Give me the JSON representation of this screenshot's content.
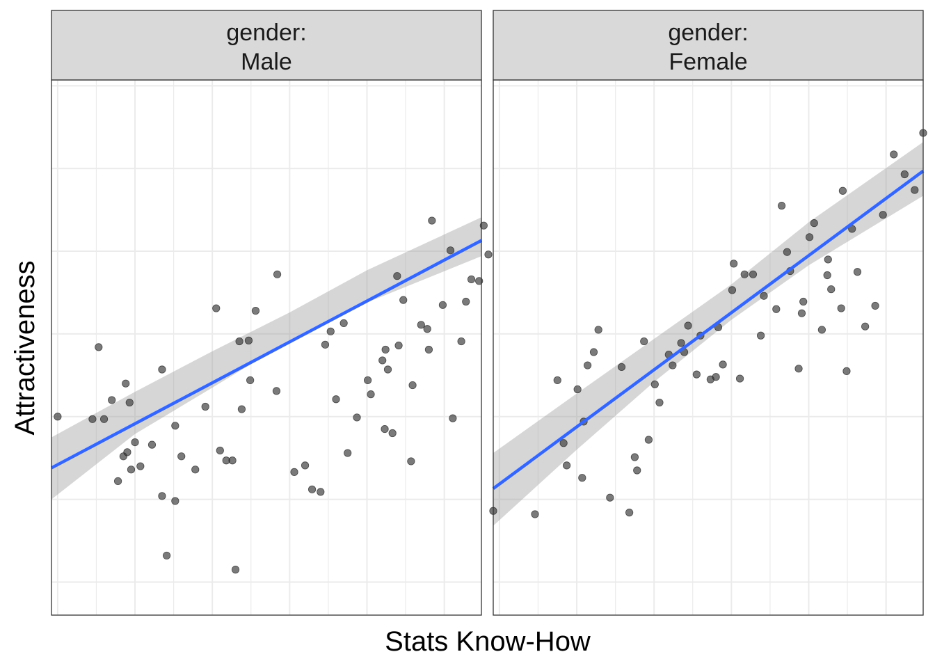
{
  "chart_data": {
    "type": "scatter",
    "xlabel": "Stats Know-How",
    "ylabel": "Attractiveness",
    "x_tick_labels": [],
    "y_tick_labels": [],
    "grid": true,
    "colors": {
      "points": "#333333",
      "fit_line": "#3366ff",
      "confidence_band": "#999999",
      "strip_background": "#d9d9d9",
      "gridlines": "#ebebeb",
      "panel_border": "#333333"
    },
    "facets": [
      {
        "strip_label_line1": "gender:",
        "strip_label_line2": "Male",
        "xlim": [
          -0.08,
          5.48
        ],
        "ylim": [
          -0.4,
          6.07
        ],
        "points": [
          [
            0.0,
            2.0
          ],
          [
            0.45,
            1.97
          ],
          [
            0.6,
            1.97
          ],
          [
            0.88,
            2.4
          ],
          [
            0.53,
            2.84
          ],
          [
            0.7,
            2.2
          ],
          [
            0.78,
            1.22
          ],
          [
            0.85,
            1.52
          ],
          [
            0.9,
            1.57
          ],
          [
            0.93,
            2.17
          ],
          [
            0.95,
            1.36
          ],
          [
            1.0,
            1.69
          ],
          [
            1.07,
            1.4
          ],
          [
            1.22,
            1.66
          ],
          [
            1.35,
            1.04
          ],
          [
            1.35,
            2.57
          ],
          [
            1.41,
            0.32
          ],
          [
            1.52,
            0.98
          ],
          [
            1.52,
            1.89
          ],
          [
            1.6,
            1.52
          ],
          [
            1.78,
            1.36
          ],
          [
            1.91,
            2.12
          ],
          [
            2.05,
            3.31
          ],
          [
            2.1,
            1.59
          ],
          [
            2.18,
            1.47
          ],
          [
            2.26,
            1.47
          ],
          [
            2.3,
            0.15
          ],
          [
            2.35,
            2.91
          ],
          [
            2.38,
            2.09
          ],
          [
            2.47,
            2.92
          ],
          [
            2.49,
            2.44
          ],
          [
            2.56,
            3.28
          ],
          [
            2.83,
            2.31
          ],
          [
            2.84,
            3.72
          ],
          [
            3.06,
            1.33
          ],
          [
            3.2,
            1.41
          ],
          [
            3.29,
            1.12
          ],
          [
            3.4,
            1.09
          ],
          [
            3.46,
            2.87
          ],
          [
            3.53,
            3.03
          ],
          [
            3.6,
            2.21
          ],
          [
            3.7,
            3.13
          ],
          [
            3.75,
            1.56
          ],
          [
            3.87,
            1.99
          ],
          [
            4.01,
            2.44
          ],
          [
            4.05,
            2.27
          ],
          [
            4.2,
            2.68
          ],
          [
            4.24,
            2.81
          ],
          [
            4.23,
            1.85
          ],
          [
            4.27,
            2.57
          ],
          [
            4.33,
            1.8
          ],
          [
            4.39,
            3.7
          ],
          [
            4.41,
            2.86
          ],
          [
            4.47,
            3.41
          ],
          [
            4.57,
            1.46
          ],
          [
            4.59,
            2.38
          ],
          [
            4.7,
            3.11
          ],
          [
            4.78,
            3.06
          ],
          [
            4.8,
            2.81
          ],
          [
            4.84,
            4.37
          ],
          [
            4.98,
            3.35
          ],
          [
            5.08,
            4.01
          ],
          [
            5.11,
            1.98
          ],
          [
            5.22,
            2.91
          ],
          [
            5.28,
            3.39
          ],
          [
            5.35,
            3.66
          ],
          [
            5.45,
            3.64
          ],
          [
            5.51,
            4.31
          ],
          [
            5.57,
            3.96
          ]
        ],
        "fit_line": {
          "x": [
            -0.08,
            5.48
          ],
          "y": [
            1.38,
            4.13
          ]
        },
        "confidence_band": {
          "x": [
            -0.08,
            1.0,
            2.0,
            3.0,
            4.0,
            5.48
          ],
          "lower": [
            1.0,
            1.79,
            2.35,
            2.92,
            3.38,
            3.94
          ],
          "upper": [
            1.75,
            2.3,
            2.79,
            3.26,
            3.77,
            4.41
          ]
        }
      },
      {
        "strip_label_line1": "gender:",
        "strip_label_line2": "Female",
        "xlim": [
          -0.08,
          5.48
        ],
        "ylim": [
          -0.4,
          6.07
        ],
        "points": [
          [
            -0.08,
            0.86
          ],
          [
            0.46,
            0.82
          ],
          [
            0.75,
            2.44
          ],
          [
            0.83,
            1.68
          ],
          [
            0.87,
            1.41
          ],
          [
            1.01,
            2.33
          ],
          [
            1.07,
            1.26
          ],
          [
            1.09,
            1.94
          ],
          [
            1.14,
            2.62
          ],
          [
            1.22,
            2.78
          ],
          [
            1.28,
            3.05
          ],
          [
            1.43,
            1.02
          ],
          [
            1.58,
            2.6
          ],
          [
            1.68,
            0.84
          ],
          [
            1.75,
            1.51
          ],
          [
            1.78,
            1.35
          ],
          [
            1.87,
            2.91
          ],
          [
            1.93,
            1.72
          ],
          [
            2.01,
            2.39
          ],
          [
            2.07,
            2.17
          ],
          [
            2.19,
            2.75
          ],
          [
            2.24,
            2.62
          ],
          [
            2.35,
            2.89
          ],
          [
            2.39,
            2.78
          ],
          [
            2.44,
            3.1
          ],
          [
            2.55,
            2.51
          ],
          [
            2.6,
            2.98
          ],
          [
            2.73,
            2.45
          ],
          [
            2.8,
            2.48
          ],
          [
            2.83,
            3.08
          ],
          [
            2.89,
            2.63
          ],
          [
            3.01,
            3.53
          ],
          [
            3.03,
            3.85
          ],
          [
            3.11,
            2.46
          ],
          [
            3.17,
            3.72
          ],
          [
            3.28,
            3.72
          ],
          [
            3.38,
            2.98
          ],
          [
            3.42,
            3.46
          ],
          [
            3.58,
            3.3
          ],
          [
            3.65,
            4.55
          ],
          [
            3.72,
            3.99
          ],
          [
            3.76,
            3.76
          ],
          [
            3.87,
            2.58
          ],
          [
            3.91,
            3.25
          ],
          [
            3.93,
            3.39
          ],
          [
            4.01,
            4.17
          ],
          [
            4.07,
            4.34
          ],
          [
            4.17,
            3.05
          ],
          [
            4.24,
            3.71
          ],
          [
            4.25,
            3.9
          ],
          [
            4.29,
            3.54
          ],
          [
            4.42,
            3.31
          ],
          [
            4.44,
            4.73
          ],
          [
            4.49,
            2.55
          ],
          [
            4.56,
            4.27
          ],
          [
            4.63,
            3.75
          ],
          [
            4.73,
            3.09
          ],
          [
            4.86,
            3.34
          ],
          [
            4.96,
            4.44
          ],
          [
            5.1,
            5.17
          ],
          [
            5.24,
            4.93
          ],
          [
            5.37,
            4.74
          ],
          [
            5.48,
            5.43
          ]
        ],
        "fit_line": {
          "x": [
            -0.08,
            5.48
          ],
          "y": [
            1.13,
            4.97
          ]
        },
        "confidence_band": {
          "x": [
            -0.08,
            1.0,
            2.0,
            3.0,
            4.0,
            5.48
          ],
          "lower": [
            0.68,
            1.6,
            2.42,
            3.17,
            3.83,
            4.67
          ],
          "upper": [
            1.56,
            2.28,
            2.94,
            3.6,
            4.35,
            5.32
          ]
        }
      }
    ]
  }
}
